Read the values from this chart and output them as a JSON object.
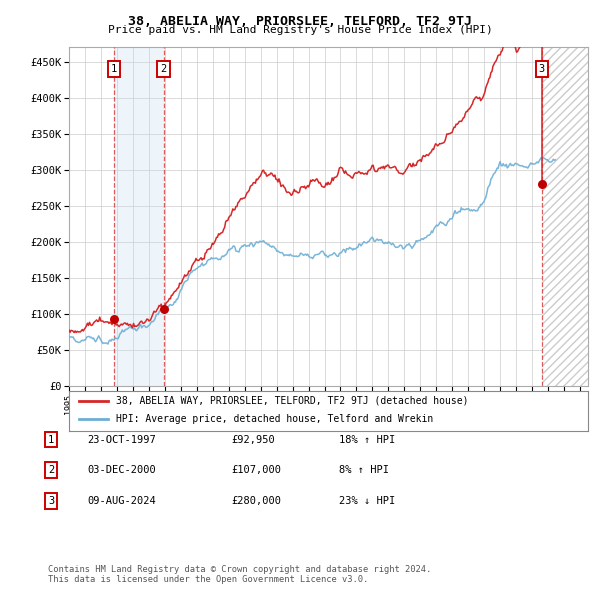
{
  "title": "38, ABELIA WAY, PRIORSLEE, TELFORD, TF2 9TJ",
  "subtitle": "Price paid vs. HM Land Registry's House Price Index (HPI)",
  "xlim": [
    1995.0,
    2027.5
  ],
  "ylim": [
    0,
    470000
  ],
  "yticks": [
    0,
    50000,
    100000,
    150000,
    200000,
    250000,
    300000,
    350000,
    400000,
    450000
  ],
  "ytick_labels": [
    "£0",
    "£50K",
    "£100K",
    "£150K",
    "£200K",
    "£250K",
    "£300K",
    "£350K",
    "£400K",
    "£450K"
  ],
  "xtick_years": [
    1995,
    1996,
    1997,
    1998,
    1999,
    2000,
    2001,
    2002,
    2003,
    2004,
    2005,
    2006,
    2007,
    2008,
    2009,
    2010,
    2011,
    2012,
    2013,
    2014,
    2015,
    2016,
    2017,
    2018,
    2019,
    2020,
    2021,
    2022,
    2023,
    2024,
    2025,
    2026,
    2027
  ],
  "sale_dates": [
    1997.81,
    2000.92,
    2024.6
  ],
  "sale_prices": [
    92950,
    107000,
    280000
  ],
  "sale_labels": [
    "1",
    "2",
    "3"
  ],
  "hpi_color": "#6baed6",
  "price_color": "#d62728",
  "dot_color": "#c00000",
  "shade1_color": "#c6dbef",
  "legend_label_red": "38, ABELIA WAY, PRIORSLEE, TELFORD, TF2 9TJ (detached house)",
  "legend_label_blue": "HPI: Average price, detached house, Telford and Wrekin",
  "table_rows": [
    [
      "1",
      "23-OCT-1997",
      "£92,950",
      "18% ↑ HPI"
    ],
    [
      "2",
      "03-DEC-2000",
      "£107,000",
      "8% ↑ HPI"
    ],
    [
      "3",
      "09-AUG-2024",
      "£280,000",
      "23% ↓ HPI"
    ]
  ],
  "footnote": "Contains HM Land Registry data © Crown copyright and database right 2024.\nThis data is licensed under the Open Government Licence v3.0.",
  "background_color": "#ffffff",
  "grid_color": "#cccccc"
}
